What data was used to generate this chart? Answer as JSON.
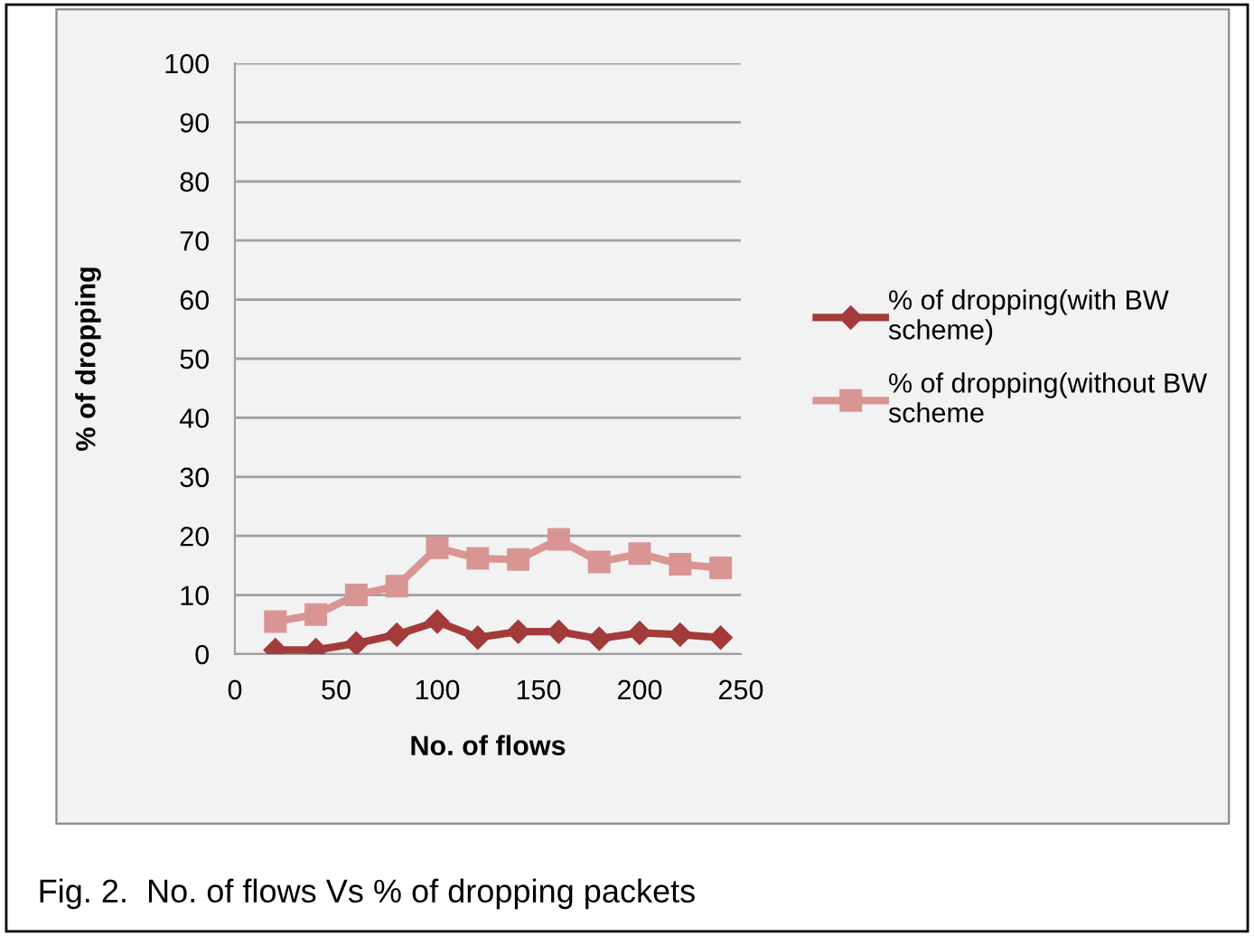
{
  "chart_data": {
    "type": "line",
    "xlabel": "No. of flows",
    "ylabel": "% of dropping",
    "x": [
      20,
      40,
      60,
      80,
      100,
      120,
      140,
      160,
      180,
      200,
      220,
      240
    ],
    "series": [
      {
        "name": "% of dropping(with BW scheme)",
        "color": "#a33b3b",
        "marker": "diamond",
        "values": [
          0.7,
          0.7,
          1.8,
          3.3,
          5.5,
          2.8,
          3.8,
          3.8,
          2.6,
          3.6,
          3.3,
          2.8
        ]
      },
      {
        "name": "% of dropping(without BW scheme",
        "color": "#d99594",
        "marker": "square",
        "values": [
          5.5,
          6.7,
          10,
          11.5,
          18,
          16.2,
          16,
          19.4,
          15.6,
          17,
          15.2,
          14.6
        ]
      }
    ],
    "xlim": [
      0,
      250
    ],
    "xticks": [
      0,
      50,
      100,
      150,
      200,
      250
    ],
    "ylim": [
      0,
      100
    ],
    "yticks": [
      0,
      10,
      20,
      30,
      40,
      50,
      60,
      70,
      80,
      90,
      100
    ],
    "grid": "y",
    "legend": "right",
    "line_style": "solid",
    "annotations": [
      "Fig. 2.  No. of flows Vs % of dropping packets"
    ]
  }
}
